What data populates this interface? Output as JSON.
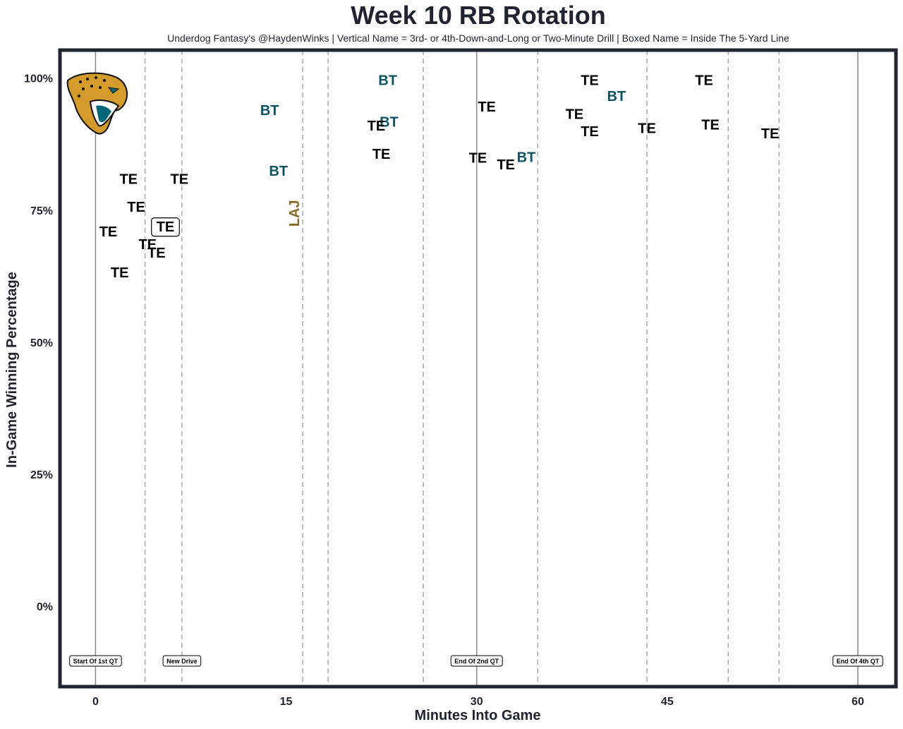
{
  "chart_data": {
    "type": "scatter",
    "title": "Week 10 RB Rotation",
    "subtitle": "Underdog Fantasy's @HaydenWinks | Vertical Name = 3rd- or 4th-Down-and-Long or Two-Minute Drill | Boxed Name = Inside The 5-Yard Line",
    "xlabel": "Minutes Into Game",
    "ylabel": "In-Game Winning Percentage",
    "xlim": [
      -2.8,
      63.0
    ],
    "ylim": [
      -0.15,
      1.055
    ],
    "xticks": [
      0,
      15,
      30,
      45,
      60
    ],
    "yticks": [
      0,
      0.25,
      0.5,
      0.75,
      1.0
    ],
    "ytick_labels": [
      "0%",
      "25%",
      "50%",
      "75%",
      "100%"
    ],
    "grid": false,
    "team_logo": "jaguar-head-logo",
    "colors": {
      "TE": "#000000",
      "BT": "#0b5263",
      "LAJ": "#8a6a23",
      "frame": "#1f2430",
      "solid_line": "#888888",
      "dashed_line": "#aaaaaa"
    },
    "solid_lines": [
      0,
      30,
      60
    ],
    "dashed_lines": [
      3.9,
      6.8,
      16.3,
      18.3,
      25.8,
      34.8,
      43.4,
      49.8,
      53.8
    ],
    "markers": [
      {
        "x": 0,
        "label": "Start Of 1st QT"
      },
      {
        "x": 6.8,
        "label": "New Drive"
      },
      {
        "x": 30,
        "label": "End Of 2nd QT"
      },
      {
        "x": 60,
        "label": "End Of 4th QT"
      }
    ],
    "points": [
      {
        "x": 2.6,
        "y": 0.81,
        "label": "TE"
      },
      {
        "x": 6.6,
        "y": 0.81,
        "label": "TE"
      },
      {
        "x": 3.2,
        "y": 0.757,
        "label": "TE"
      },
      {
        "x": 1.0,
        "y": 0.71,
        "label": "TE"
      },
      {
        "x": 5.5,
        "y": 0.72,
        "label": "TE",
        "boxed": true
      },
      {
        "x": 4.1,
        "y": 0.686,
        "label": "TE"
      },
      {
        "x": 4.8,
        "y": 0.67,
        "label": "TE"
      },
      {
        "x": 1.9,
        "y": 0.633,
        "label": "TE"
      },
      {
        "x": 13.7,
        "y": 0.94,
        "label": "BT"
      },
      {
        "x": 14.4,
        "y": 0.825,
        "label": "BT"
      },
      {
        "x": 15.7,
        "y": 0.746,
        "label": "LAJ",
        "vertical": true
      },
      {
        "x": 23.0,
        "y": 0.997,
        "label": "BT"
      },
      {
        "x": 23.1,
        "y": 0.918,
        "label": "BT"
      },
      {
        "x": 22.1,
        "y": 0.911,
        "label": "TE"
      },
      {
        "x": 22.5,
        "y": 0.857,
        "label": "TE"
      },
      {
        "x": 30.8,
        "y": 0.947,
        "label": "TE"
      },
      {
        "x": 30.1,
        "y": 0.85,
        "label": "TE"
      },
      {
        "x": 32.3,
        "y": 0.837,
        "label": "TE"
      },
      {
        "x": 33.9,
        "y": 0.851,
        "label": "BT"
      },
      {
        "x": 38.9,
        "y": 0.997,
        "label": "TE"
      },
      {
        "x": 47.9,
        "y": 0.997,
        "label": "TE"
      },
      {
        "x": 41.0,
        "y": 0.967,
        "label": "BT"
      },
      {
        "x": 37.7,
        "y": 0.933,
        "label": "TE"
      },
      {
        "x": 38.9,
        "y": 0.9,
        "label": "TE"
      },
      {
        "x": 43.4,
        "y": 0.906,
        "label": "TE"
      },
      {
        "x": 48.4,
        "y": 0.913,
        "label": "TE"
      },
      {
        "x": 53.1,
        "y": 0.896,
        "label": "TE"
      }
    ]
  }
}
